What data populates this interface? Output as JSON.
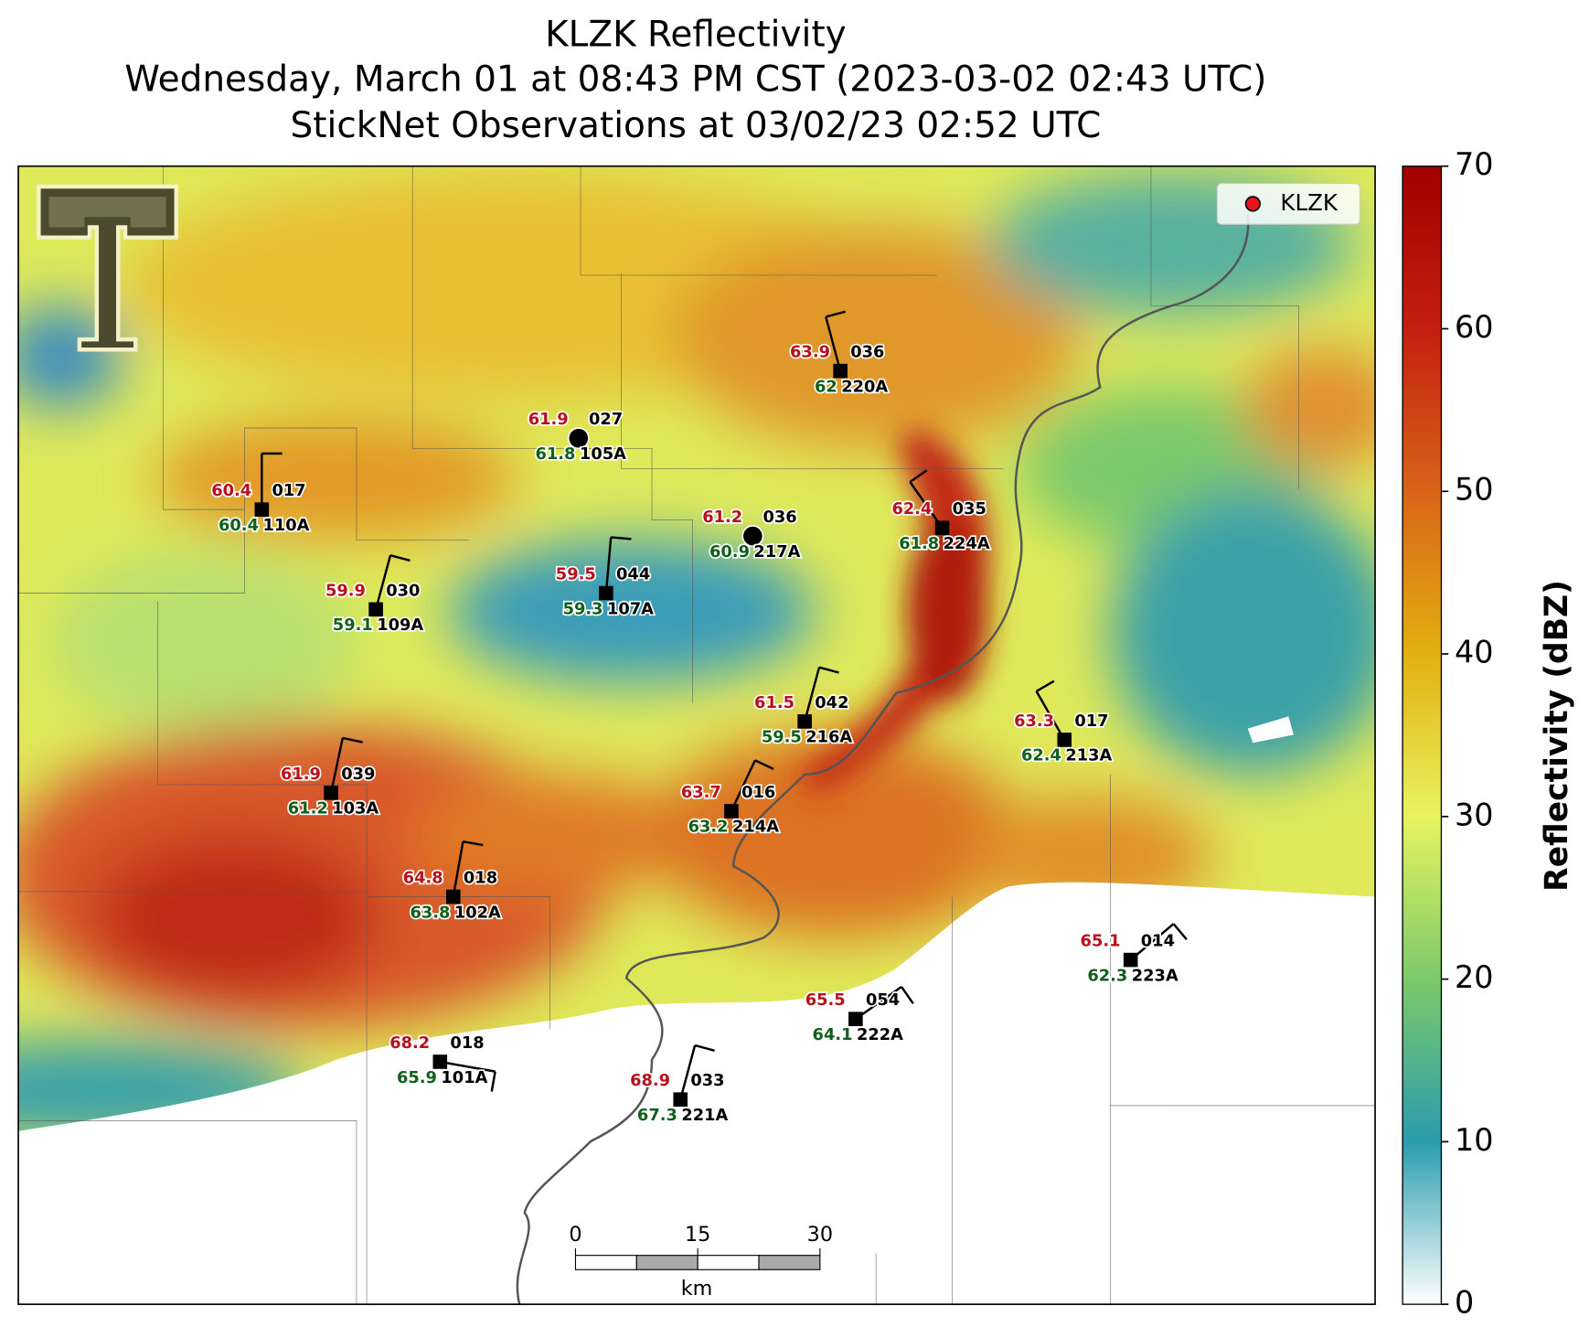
{
  "title": [
    "KLZK Reflectivity",
    "Wednesday, March 01 at 08:43 PM CST (2023-03-02 02:43 UTC)",
    "StickNet Observations at 03/02/23 02:52 UTC"
  ],
  "legend": {
    "label": "KLZK",
    "color": "#e8141e"
  },
  "colorbar": {
    "label": "Reflectivity (dBZ)",
    "lim": [
      0,
      70
    ],
    "ticks": [
      0,
      10,
      20,
      30,
      40,
      50,
      60,
      70
    ]
  },
  "scale_bar": {
    "ticks": [
      0,
      15,
      30
    ],
    "unit": "km"
  },
  "stations": [
    {
      "id": "110A",
      "temperature": 60.4,
      "dewpoint": 60.4,
      "code": "017"
    },
    {
      "id": "109A",
      "temperature": 59.9,
      "dewpoint": 59.1,
      "code": "030"
    },
    {
      "id": "105A",
      "temperature": 61.9,
      "dewpoint": 61.8,
      "code": "027"
    },
    {
      "id": "107A",
      "temperature": 59.5,
      "dewpoint": 59.3,
      "code": "044"
    },
    {
      "id": "217A",
      "temperature": 61.2,
      "dewpoint": 60.9,
      "code": "036"
    },
    {
      "id": "220A",
      "temperature": 63.9,
      "dewpoint": 62.0,
      "code": "036"
    },
    {
      "id": "224A",
      "temperature": 62.4,
      "dewpoint": 61.8,
      "code": "035"
    },
    {
      "id": "216A",
      "temperature": 61.5,
      "dewpoint": 59.5,
      "code": "042"
    },
    {
      "id": "213A",
      "temperature": 63.3,
      "dewpoint": 62.4,
      "code": "017"
    },
    {
      "id": "103A",
      "temperature": 61.9,
      "dewpoint": 61.2,
      "code": "039"
    },
    {
      "id": "214A",
      "temperature": 63.7,
      "dewpoint": 63.2,
      "code": "016"
    },
    {
      "id": "102A",
      "temperature": 64.8,
      "dewpoint": 63.8,
      "code": "018"
    },
    {
      "id": "223A",
      "temperature": 65.1,
      "dewpoint": 62.3,
      "code": "014"
    },
    {
      "id": "222A",
      "temperature": 65.5,
      "dewpoint": 64.1,
      "code": "054"
    },
    {
      "id": "101A",
      "temperature": 68.2,
      "dewpoint": 65.9,
      "code": "018"
    },
    {
      "id": "221A",
      "temperature": 68.9,
      "dewpoint": 67.3,
      "code": "033"
    }
  ]
}
